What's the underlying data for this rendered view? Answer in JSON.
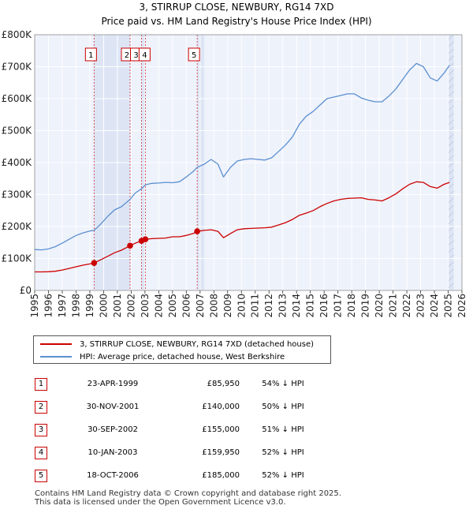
{
  "chart_data": {
    "type": "line",
    "title": "3, STIRRUP CLOSE, NEWBURY, RG14 7XD",
    "subtitle": "Price paid vs. HM Land Registry's House Price Index (HPI)",
    "xlabel": "",
    "ylabel": "",
    "xlim": [
      1995,
      2026
    ],
    "ylim": [
      0,
      800000
    ],
    "x_ticks": [
      "1995",
      "1996",
      "1997",
      "1998",
      "1999",
      "2000",
      "2001",
      "2002",
      "2003",
      "2004",
      "2005",
      "2006",
      "2007",
      "2008",
      "2009",
      "2010",
      "2011",
      "2012",
      "2013",
      "2014",
      "2015",
      "2016",
      "2017",
      "2018",
      "2019",
      "2020",
      "2021",
      "2022",
      "2023",
      "2024",
      "2025",
      "2026"
    ],
    "y_ticks": [
      {
        "value": 0,
        "label": "£0"
      },
      {
        "value": 100000,
        "label": "£100K"
      },
      {
        "value": 200000,
        "label": "£200K"
      },
      {
        "value": 300000,
        "label": "£300K"
      },
      {
        "value": 400000,
        "label": "£400K"
      },
      {
        "value": 500000,
        "label": "£500K"
      },
      {
        "value": 600000,
        "label": "£600K"
      },
      {
        "value": 700000,
        "label": "£700K"
      },
      {
        "value": 800000,
        "label": "£800K"
      }
    ],
    "grid": true,
    "shaded_ranges": [
      [
        1999.31,
        2001.92
      ],
      [
        2002.75,
        2003.03
      ],
      [
        2006.79,
        2007.3
      ],
      [
        2025.0,
        2025.4
      ]
    ],
    "series": [
      {
        "name": "3, STIRRUP CLOSE, NEWBURY, RG14 7XD (detached house)",
        "color": "#cc0000",
        "x": [
          1995,
          1995.5,
          1996,
          1996.5,
          1997,
          1997.5,
          1998,
          1998.5,
          1999,
          1999.31,
          1999.8,
          2000.3,
          2000.8,
          2001.3,
          2001.92,
          2002.3,
          2002.75,
          2003.03,
          2003.5,
          2004,
          2004.5,
          2005,
          2005.5,
          2006,
          2006.5,
          2006.79,
          2007.3,
          2007.8,
          2008.3,
          2008.7,
          2009.2,
          2009.7,
          2010.2,
          2010.7,
          2011.2,
          2011.7,
          2012.2,
          2012.7,
          2013.2,
          2013.7,
          2014.2,
          2014.7,
          2015.2,
          2015.7,
          2016.2,
          2016.7,
          2017.2,
          2017.7,
          2018.2,
          2018.7,
          2019.2,
          2019.7,
          2020.2,
          2020.7,
          2021.2,
          2021.7,
          2022.2,
          2022.7,
          2023.2,
          2023.7,
          2024.2,
          2024.7,
          2025.1
        ],
        "y": [
          58000,
          58000,
          58500,
          60000,
          64000,
          69000,
          74000,
          79000,
          83000,
          85950,
          96000,
          107000,
          118000,
          126000,
          140000,
          148000,
          155000,
          159950,
          162000,
          163000,
          164000,
          168000,
          168000,
          172000,
          178000,
          185000,
          188000,
          190000,
          185000,
          165000,
          178000,
          190000,
          193000,
          194000,
          195000,
          196000,
          198000,
          205000,
          212000,
          222000,
          235000,
          242000,
          250000,
          262000,
          272000,
          280000,
          285000,
          288000,
          289000,
          290000,
          285000,
          283000,
          280000,
          290000,
          302000,
          318000,
          332000,
          340000,
          338000,
          325000,
          320000,
          332000,
          338000
        ]
      },
      {
        "name": "HPI: Average price, detached house, West Berkshire",
        "color": "#5b8fd1",
        "x": [
          1995,
          1995.5,
          1996,
          1996.5,
          1997,
          1997.5,
          1998,
          1998.5,
          1999,
          1999.31,
          1999.8,
          2000.3,
          2000.8,
          2001.3,
          2001.92,
          2002.3,
          2002.75,
          2003.03,
          2003.5,
          2004,
          2004.5,
          2005,
          2005.5,
          2006,
          2006.5,
          2006.79,
          2007.3,
          2007.8,
          2008.3,
          2008.7,
          2009.2,
          2009.7,
          2010.2,
          2010.7,
          2011.2,
          2011.7,
          2012.2,
          2012.7,
          2013.2,
          2013.7,
          2014.2,
          2014.7,
          2015.2,
          2015.7,
          2016.2,
          2016.7,
          2017.2,
          2017.7,
          2018.2,
          2018.7,
          2019.2,
          2019.7,
          2020.2,
          2020.7,
          2021.2,
          2021.7,
          2022.2,
          2022.7,
          2023.2,
          2023.7,
          2024.2,
          2024.7,
          2025.1
        ],
        "y": [
          128000,
          127000,
          130000,
          137000,
          148000,
          160000,
          172000,
          180000,
          186000,
          188000,
          208000,
          232000,
          252000,
          262000,
          285000,
          305000,
          318000,
          330000,
          335000,
          336000,
          338000,
          337000,
          340000,
          355000,
          372000,
          385000,
          395000,
          410000,
          395000,
          355000,
          385000,
          405000,
          410000,
          412000,
          410000,
          408000,
          415000,
          435000,
          455000,
          480000,
          520000,
          545000,
          560000,
          580000,
          600000,
          605000,
          610000,
          615000,
          615000,
          602000,
          595000,
          590000,
          590000,
          608000,
          630000,
          660000,
          690000,
          710000,
          700000,
          665000,
          655000,
          680000,
          705000
        ]
      }
    ],
    "sale_markers": [
      {
        "label": "1",
        "x": 1999.31,
        "y": 85950
      },
      {
        "label": "2",
        "x": 2001.92,
        "y": 140000
      },
      {
        "label": "3",
        "x": 2002.75,
        "y": 155000
      },
      {
        "label": "4",
        "x": 2003.03,
        "y": 159950
      },
      {
        "label": "5",
        "x": 2006.79,
        "y": 185000
      }
    ]
  },
  "legend": {
    "red_label": "3, STIRRUP CLOSE, NEWBURY, RG14 7XD (detached house)",
    "blue_label": "HPI: Average price, detached house, West Berkshire"
  },
  "sales_table": [
    {
      "num": "1",
      "date": "23-APR-1999",
      "price": "£85,950",
      "hpi": "54% ↓ HPI"
    },
    {
      "num": "2",
      "date": "30-NOV-2001",
      "price": "£140,000",
      "hpi": "50% ↓ HPI"
    },
    {
      "num": "3",
      "date": "30-SEP-2002",
      "price": "£155,000",
      "hpi": "51% ↓ HPI"
    },
    {
      "num": "4",
      "date": "10-JAN-2003",
      "price": "£159,950",
      "hpi": "52% ↓ HPI"
    },
    {
      "num": "5",
      "date": "18-OCT-2006",
      "price": "£185,000",
      "hpi": "52% ↓ HPI"
    }
  ],
  "footer": {
    "line1": "Contains HM Land Registry data © Crown copyright and database right 2025.",
    "line2": "This data is licensed under the Open Government Licence v3.0."
  }
}
